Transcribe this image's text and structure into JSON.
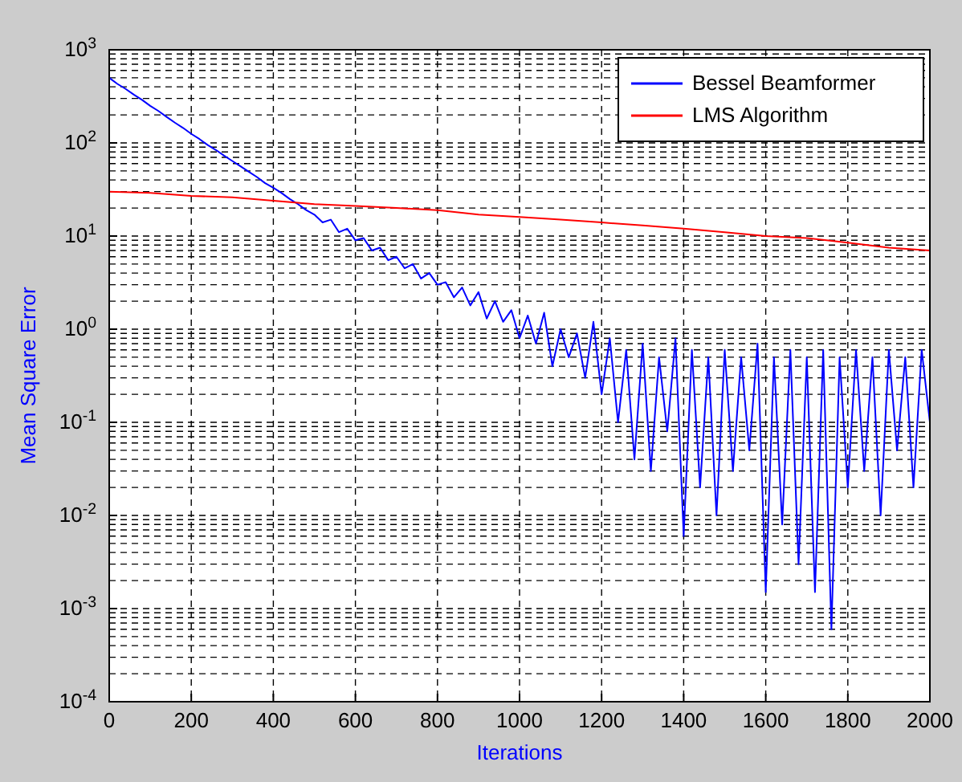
{
  "chart_data": {
    "type": "line",
    "xlabel": "Iterations",
    "ylabel": "Mean Square Error",
    "log": "y",
    "grid": true,
    "legend": "top right",
    "line_style": "solid",
    "xlim": [
      0,
      2000
    ],
    "xticks": [
      0,
      200,
      400,
      600,
      800,
      1000,
      1200,
      1400,
      1600,
      1800,
      2000
    ],
    "ylim": [
      0.0001,
      1000
    ],
    "yticks": [
      {
        "value": 0.0001,
        "label": "10$^{-4}$"
      },
      {
        "value": 0.001,
        "label": "10$^{-3}$"
      },
      {
        "value": 0.01,
        "label": "10$^{-2}$"
      },
      {
        "value": 0.1,
        "label": "10$^{-1}$"
      },
      {
        "value": 1,
        "label": "10$^{0}$"
      },
      {
        "value": 10,
        "label": "10$^{1}$"
      },
      {
        "value": 100,
        "label": "10$^{2}$"
      },
      {
        "value": 1000,
        "label": "10$^{3}$"
      }
    ],
    "series": [
      {
        "name": "Bessel Beamformer",
        "color": "#0000ff",
        "x": [
          0,
          20,
          40,
          60,
          80,
          100,
          120,
          140,
          160,
          180,
          200,
          220,
          240,
          260,
          280,
          300,
          320,
          340,
          360,
          380,
          400,
          420,
          440,
          460,
          480,
          500,
          520,
          540,
          560,
          580,
          600,
          620,
          640,
          660,
          680,
          700,
          720,
          740,
          760,
          780,
          800,
          820,
          840,
          860,
          880,
          900,
          920,
          940,
          960,
          980,
          1000,
          1020,
          1040,
          1060,
          1080,
          1100,
          1120,
          1140,
          1160,
          1180,
          1200,
          1220,
          1240,
          1260,
          1280,
          1300,
          1320,
          1340,
          1360,
          1380,
          1400,
          1420,
          1440,
          1460,
          1480,
          1500,
          1520,
          1540,
          1560,
          1580,
          1600,
          1620,
          1640,
          1660,
          1680,
          1700,
          1720,
          1740,
          1760,
          1780,
          1800,
          1820,
          1840,
          1860,
          1880,
          1900,
          1920,
          1940,
          1960,
          1980,
          2000
        ],
        "values": [
          500,
          430,
          380,
          330,
          290,
          250,
          220,
          190,
          165,
          145,
          125,
          110,
          95,
          84,
          73,
          64,
          56,
          49,
          43,
          37,
          33,
          29,
          25,
          22,
          19,
          17,
          14,
          15,
          11,
          12,
          9,
          9.5,
          7,
          7.5,
          5.5,
          6,
          4.5,
          5,
          3.5,
          4,
          3,
          3.2,
          2.2,
          2.8,
          1.8,
          2.5,
          1.3,
          2,
          1.2,
          1.6,
          0.8,
          1.4,
          0.7,
          1.5,
          0.4,
          1.0,
          0.5,
          0.9,
          0.3,
          1.2,
          0.2,
          0.8,
          0.1,
          0.6,
          0.04,
          0.7,
          0.03,
          0.5,
          0.08,
          0.8,
          0.006,
          0.6,
          0.02,
          0.5,
          0.01,
          0.6,
          0.03,
          0.5,
          0.05,
          0.7,
          0.0015,
          0.5,
          0.008,
          0.6,
          0.003,
          0.5,
          0.0015,
          0.6,
          0.0006,
          0.5,
          0.02,
          0.6,
          0.03,
          0.5,
          0.01,
          0.6,
          0.05,
          0.5,
          0.02,
          0.6,
          0.1
        ]
      },
      {
        "name": "LMS Algorithm",
        "color": "#ff0000",
        "x": [
          0,
          100,
          200,
          300,
          400,
          500,
          600,
          700,
          800,
          900,
          1000,
          1100,
          1200,
          1300,
          1400,
          1500,
          1600,
          1700,
          1800,
          1900,
          2000
        ],
        "values": [
          30,
          29,
          27,
          26,
          24,
          22,
          21,
          20,
          19,
          17,
          16,
          15,
          14,
          13,
          12,
          11,
          10,
          9.5,
          8.5,
          7.5,
          7
        ]
      }
    ]
  }
}
